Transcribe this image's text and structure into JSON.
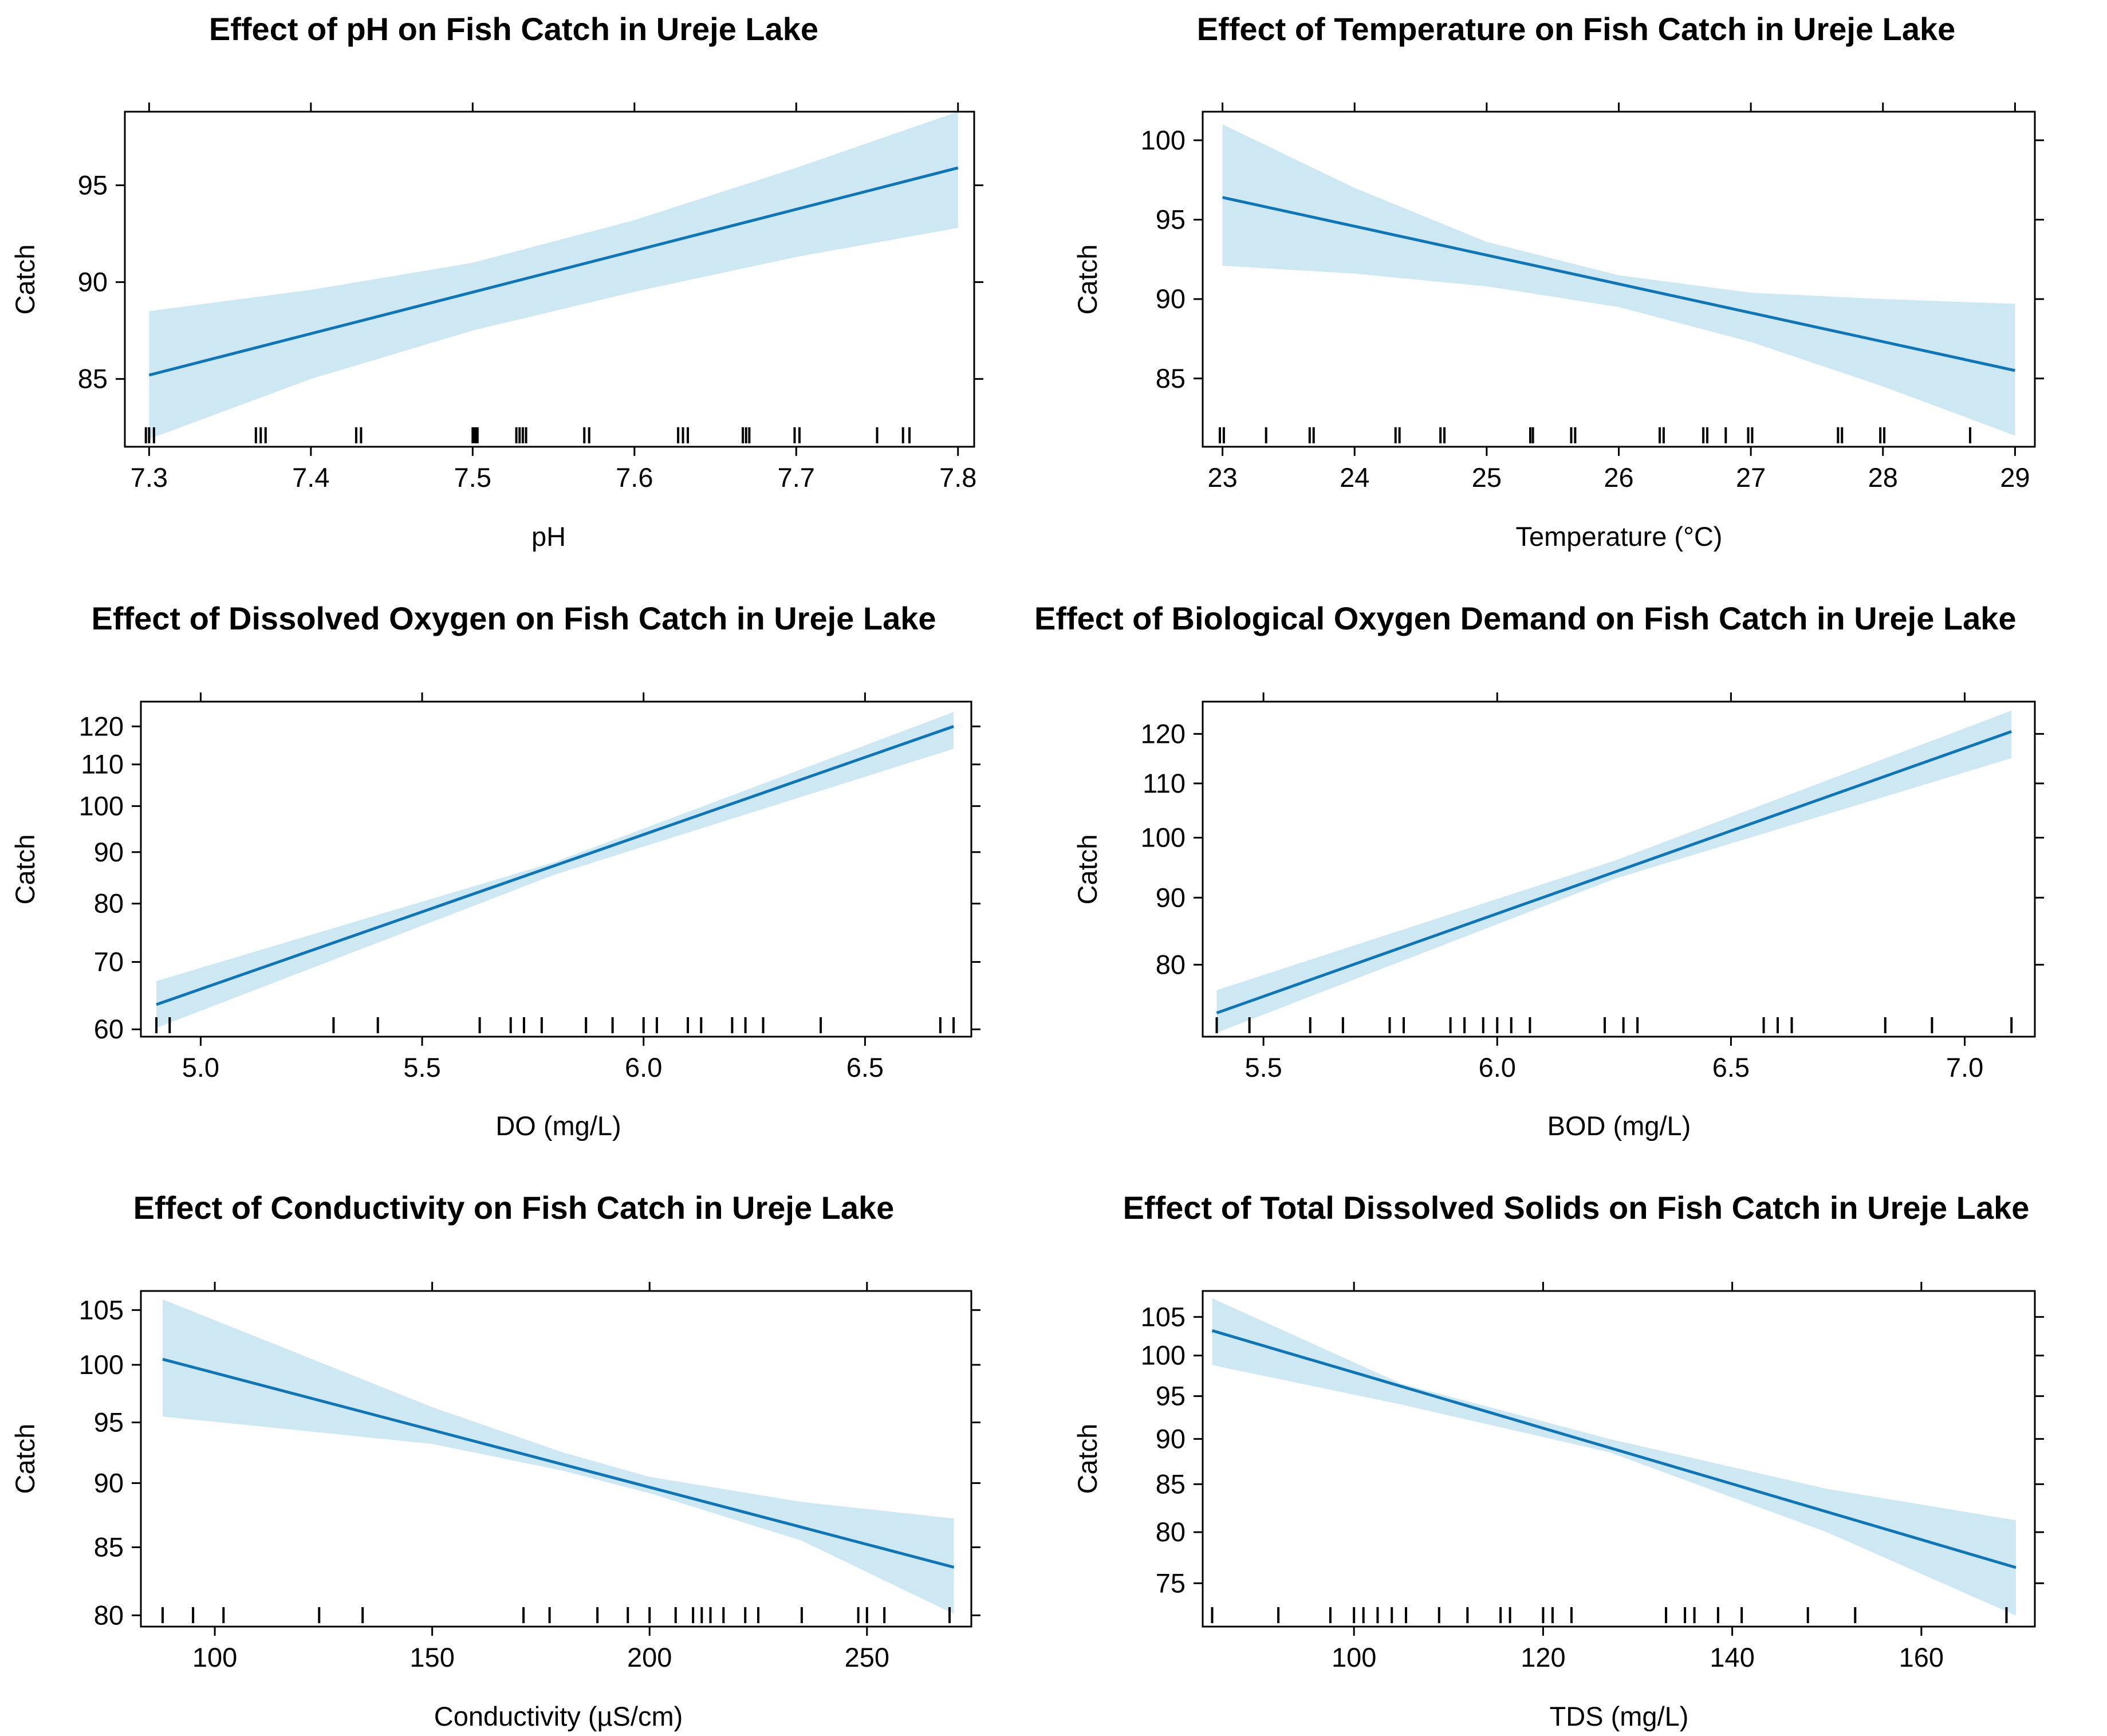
{
  "chart_data": [
    {
      "type": "line",
      "title": "Effect of pH on Fish Catch in Ureje Lake",
      "xlabel": "pH",
      "ylabel": "Catch",
      "xlim": [
        7.285,
        7.81
      ],
      "ylim": [
        81.5,
        98.8
      ],
      "yscale": "linear",
      "xticks": [
        7.3,
        7.4,
        7.5,
        7.6,
        7.7,
        7.8
      ],
      "xtick_labels": [
        "7.3",
        "7.4",
        "7.5",
        "7.6",
        "7.7",
        "7.8"
      ],
      "yticks": [
        85,
        90,
        95
      ],
      "ytick_labels": [
        "85",
        "90",
        "95"
      ],
      "line": [
        [
          7.3,
          85.2
        ],
        [
          7.8,
          95.9
        ]
      ],
      "band_upper": [
        [
          7.3,
          88.5
        ],
        [
          7.4,
          89.6
        ],
        [
          7.5,
          91.0
        ],
        [
          7.6,
          93.2
        ],
        [
          7.7,
          95.9
        ],
        [
          7.8,
          98.8
        ]
      ],
      "band_lower": [
        [
          7.3,
          81.9
        ],
        [
          7.4,
          85.0
        ],
        [
          7.5,
          87.5
        ],
        [
          7.6,
          89.5
        ],
        [
          7.7,
          91.3
        ],
        [
          7.8,
          92.8
        ]
      ],
      "rug": [
        7.298,
        7.3,
        7.303,
        7.366,
        7.369,
        7.372,
        7.428,
        7.431,
        7.5,
        7.501,
        7.502,
        7.503,
        7.527,
        7.529,
        7.531,
        7.533,
        7.569,
        7.572,
        7.627,
        7.63,
        7.633,
        7.667,
        7.669,
        7.671,
        7.699,
        7.702,
        7.75,
        7.766,
        7.77
      ]
    },
    {
      "type": "line",
      "title": "Effect of Temperature on Fish Catch in Ureje Lake",
      "xlabel": "Temperature (°C)",
      "ylabel": "Catch",
      "xlim": [
        22.85,
        29.15
      ],
      "ylim": [
        80.7,
        101.8
      ],
      "yscale": "linear",
      "xticks": [
        23,
        24,
        25,
        26,
        27,
        28,
        29
      ],
      "xtick_labels": [
        "23",
        "24",
        "25",
        "26",
        "27",
        "28",
        "29"
      ],
      "yticks": [
        85,
        90,
        95,
        100
      ],
      "ytick_labels": [
        "85",
        "90",
        "95",
        "100"
      ],
      "line": [
        [
          23,
          96.4
        ],
        [
          29,
          85.5
        ]
      ],
      "band_upper": [
        [
          23,
          101.0
        ],
        [
          24,
          97.0
        ],
        [
          25,
          93.6
        ],
        [
          26,
          91.5
        ],
        [
          27,
          90.4
        ],
        [
          28,
          90.0
        ],
        [
          29,
          89.7
        ]
      ],
      "band_lower": [
        [
          23,
          92.1
        ],
        [
          24,
          91.6
        ],
        [
          25,
          90.8
        ],
        [
          26,
          89.5
        ],
        [
          27,
          87.3
        ],
        [
          28,
          84.5
        ],
        [
          29,
          81.4
        ]
      ],
      "rug": [
        22.98,
        23.01,
        23.33,
        23.66,
        23.69,
        24.31,
        24.34,
        24.65,
        24.68,
        25.33,
        25.35,
        25.64,
        25.67,
        26.31,
        26.34,
        26.64,
        26.67,
        26.81,
        26.98,
        27.01,
        27.66,
        27.69,
        27.98,
        28.01,
        28.66
      ]
    },
    {
      "type": "line",
      "title": "Effect of Dissolved Oxygen on Fish Catch in Ureje Lake",
      "xlabel": "DO (mg/L)",
      "ylabel": "Catch",
      "xlim": [
        4.865,
        6.74
      ],
      "ylim": [
        59,
        127
      ],
      "yscale": "log",
      "xticks": [
        5.0,
        5.5,
        6.0,
        6.5
      ],
      "xtick_labels": [
        "5.0",
        "5.5",
        "6.0",
        "6.5"
      ],
      "yticks": [
        60,
        70,
        80,
        90,
        100,
        110,
        120
      ],
      "ytick_labels": [
        "60",
        "70",
        "80",
        "90",
        "100",
        "110",
        "120"
      ],
      "line": [
        [
          4.9,
          63.5
        ],
        [
          6.7,
          120.0
        ]
      ],
      "band_upper": [
        [
          4.9,
          67.0
        ],
        [
          5.8,
          88.0
        ],
        [
          6.7,
          124.0
        ]
      ],
      "band_lower": [
        [
          4.9,
          60.2
        ],
        [
          5.8,
          85.5
        ],
        [
          6.7,
          114.0
        ]
      ],
      "rug": [
        4.9,
        4.93,
        5.3,
        5.4,
        5.63,
        5.7,
        5.73,
        5.77,
        5.87,
        5.93,
        6.0,
        6.03,
        6.1,
        6.13,
        6.2,
        6.23,
        6.27,
        6.4,
        6.67,
        6.7
      ]
    },
    {
      "type": "line",
      "title": "Effect of Biological Oxygen Demand on Fish Catch in Ureje Lake",
      "xlabel": "BOD (mg/L)",
      "ylabel": "Catch",
      "xlim": [
        5.37,
        7.15
      ],
      "ylim": [
        70.5,
        127
      ],
      "yscale": "log",
      "xticks": [
        5.5,
        6.0,
        6.5,
        7.0
      ],
      "xtick_labels": [
        "5.5",
        "6.0",
        "6.5",
        "7.0"
      ],
      "yticks": [
        80,
        90,
        100,
        110,
        120
      ],
      "ytick_labels": [
        "80",
        "90",
        "100",
        "110",
        "120"
      ],
      "line": [
        [
          5.4,
          73.5
        ],
        [
          7.1,
          120.5
        ]
      ],
      "band_upper": [
        [
          5.4,
          76.5
        ],
        [
          6.25,
          96.0
        ],
        [
          7.1,
          125.0
        ]
      ],
      "band_lower": [
        [
          5.4,
          71.0
        ],
        [
          6.25,
          93.0
        ],
        [
          7.1,
          115.0
        ]
      ],
      "rug": [
        5.4,
        5.47,
        5.6,
        5.67,
        5.77,
        5.8,
        5.9,
        5.93,
        5.97,
        6.0,
        6.03,
        6.07,
        6.23,
        6.27,
        6.3,
        6.57,
        6.6,
        6.63,
        6.83,
        6.93,
        7.1
      ]
    },
    {
      "type": "line",
      "title": "Effect of Conductivity on Fish Catch in Ureje Lake",
      "xlabel": "Conductivity (µS/cm)",
      "ylabel": "Catch",
      "xlim": [
        83,
        274
      ],
      "ylim": [
        79.2,
        106.8
      ],
      "yscale": "log",
      "xticks": [
        100,
        150,
        200,
        250
      ],
      "xtick_labels": [
        "100",
        "150",
        "200",
        "250"
      ],
      "yticks": [
        80,
        85,
        90,
        95,
        100,
        105
      ],
      "ytick_labels": [
        "80",
        "85",
        "90",
        "95",
        "100",
        "105"
      ],
      "line": [
        [
          88,
          100.5
        ],
        [
          270,
          83.5
        ]
      ],
      "band_upper": [
        [
          88,
          106.0
        ],
        [
          150,
          96.3
        ],
        [
          180,
          92.5
        ],
        [
          200,
          90.5
        ],
        [
          235,
          88.5
        ],
        [
          270,
          87.2
        ]
      ],
      "band_lower": [
        [
          88,
          95.5
        ],
        [
          150,
          93.2
        ],
        [
          180,
          91.0
        ],
        [
          200,
          89.2
        ],
        [
          235,
          85.5
        ],
        [
          270,
          80.1
        ]
      ],
      "rug": [
        88,
        95,
        102,
        124,
        134,
        171,
        177,
        188,
        195,
        200,
        206,
        210,
        212,
        214,
        217,
        222,
        225,
        235,
        248,
        250,
        254,
        269
      ]
    },
    {
      "type": "line",
      "title": "Effect of Total Dissolved Solids on Fish Catch in Ureje Lake",
      "xlabel": "TDS (mg/L)",
      "ylabel": "Catch",
      "xlim": [
        84,
        172
      ],
      "ylim": [
        71,
        108.5
      ],
      "yscale": "log",
      "xticks": [
        100,
        120,
        140,
        160
      ],
      "xtick_labels": [
        "100",
        "120",
        "140",
        "160"
      ],
      "yticks": [
        75,
        80,
        85,
        90,
        95,
        100,
        105
      ],
      "ytick_labels": [
        "75",
        "80",
        "85",
        "90",
        "95",
        "100",
        "105"
      ],
      "line": [
        [
          85,
          103.2
        ],
        [
          170,
          76.5
        ]
      ],
      "band_upper": [
        [
          85,
          107.5
        ],
        [
          105,
          96.5
        ],
        [
          127,
          90.0
        ],
        [
          150,
          84.5
        ],
        [
          170,
          81.2
        ]
      ],
      "band_lower": [
        [
          85,
          98.8
        ],
        [
          105,
          94.0
        ],
        [
          127,
          88.5
        ],
        [
          150,
          80.0
        ],
        [
          170,
          72.0
        ]
      ],
      "rug": [
        85,
        92,
        97.5,
        100,
        101,
        102.5,
        104,
        105.5,
        109,
        112,
        115.5,
        116.5,
        120,
        121,
        123,
        133,
        135,
        136,
        138.5,
        141,
        148,
        153,
        169
      ]
    }
  ]
}
